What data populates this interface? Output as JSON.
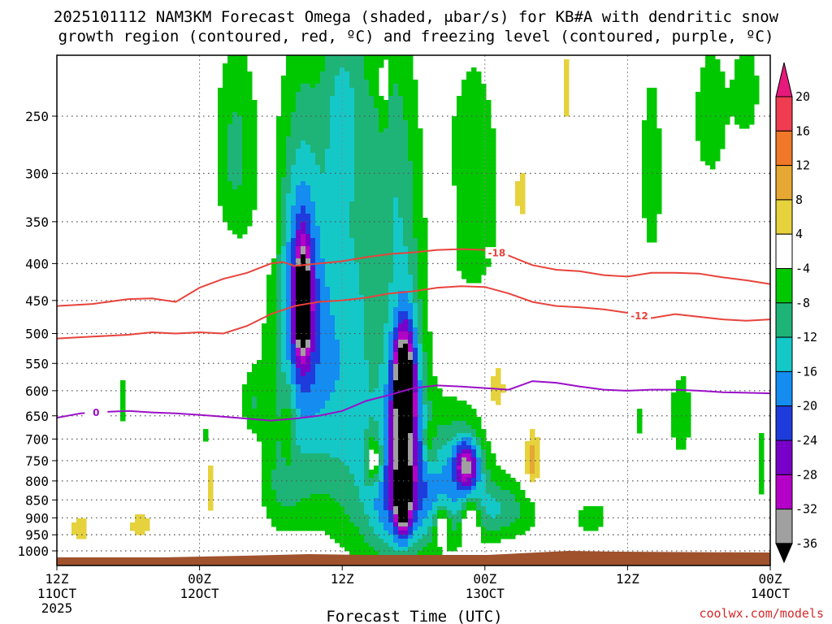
{
  "chart_data": {
    "type": "heatmap",
    "title_line1": "2025101112 NAM3KM Forecast Omega (shaded, μbar/s) for KB#A with dendritic snow",
    "title_line2": "growth region (contoured, red, ºC) and freezing level (contoured, purple, ºC)",
    "xlabel": "Forecast Time (UTC)",
    "credit": "coolwx.com/models",
    "x_range_hours": [
      0,
      60
    ],
    "y_range_hpa": [
      1025,
      200
    ],
    "y_scale": "log-pressure",
    "x_ticks": [
      {
        "hour": 0,
        "label1": "12Z",
        "label2": "11OCT",
        "label3": "2025"
      },
      {
        "hour": 12,
        "label1": "00Z",
        "label2": "12OCT",
        "label3": ""
      },
      {
        "hour": 24,
        "label1": "12Z",
        "label2": "",
        "label3": ""
      },
      {
        "hour": 36,
        "label1": "00Z",
        "label2": "13OCT",
        "label3": ""
      },
      {
        "hour": 48,
        "label1": "12Z",
        "label2": "",
        "label3": ""
      },
      {
        "hour": 60,
        "label1": "00Z",
        "label2": "14OCT",
        "label3": ""
      }
    ],
    "y_ticks": [
      {
        "p": 250,
        "label": "250"
      },
      {
        "p": 300,
        "label": "300"
      },
      {
        "p": 350,
        "label": "350"
      },
      {
        "p": 400,
        "label": "400"
      },
      {
        "p": 450,
        "label": "450"
      },
      {
        "p": 500,
        "label": "500"
      },
      {
        "p": 550,
        "label": "550"
      },
      {
        "p": 600,
        "label": "600"
      },
      {
        "p": 650,
        "label": "650"
      },
      {
        "p": 700,
        "label": "700"
      },
      {
        "p": 750,
        "label": "750"
      },
      {
        "p": 800,
        "label": "800"
      },
      {
        "p": 850,
        "label": "850"
      },
      {
        "p": 900,
        "label": "900"
      },
      {
        "p": 950,
        "label": "950"
      },
      {
        "p": 1000,
        "label": "1000"
      }
    ],
    "colorbar": {
      "labels": [
        "20",
        "16",
        "12",
        "8",
        "4",
        "-4",
        "-8",
        "-12",
        "-16",
        "-20",
        "-24",
        "-28",
        "-32",
        "-36"
      ],
      "bins": [
        {
          "lo": 16,
          "hi": 20,
          "color": "#f03c50"
        },
        {
          "lo": 12,
          "hi": 16,
          "color": "#f07828"
        },
        {
          "lo": 8,
          "hi": 12,
          "color": "#e6a832"
        },
        {
          "lo": 4,
          "hi": 8,
          "color": "#e6d23c"
        },
        {
          "lo": -4,
          "hi": 4,
          "color": "#ffffff"
        },
        {
          "lo": -8,
          "hi": -4,
          "color": "#00c800"
        },
        {
          "lo": -12,
          "hi": -8,
          "color": "#1eb478"
        },
        {
          "lo": -16,
          "hi": -12,
          "color": "#14c8c8"
        },
        {
          "lo": -20,
          "hi": -16,
          "color": "#148cf0"
        },
        {
          "lo": -24,
          "hi": -20,
          "color": "#1e3cdc"
        },
        {
          "lo": -28,
          "hi": -24,
          "color": "#7800c8"
        },
        {
          "lo": -32,
          "hi": -28,
          "color": "#b400c8"
        },
        {
          "lo": -36,
          "hi": -32,
          "color": "#a0a0a0"
        }
      ],
      "top_color": "#e6197d",
      "bottom_color": "#000000"
    },
    "colors": {
      "dgz": "#e8433c",
      "freezing": "#9b0fc8",
      "ground": "#a0522d",
      "grid": "#888888"
    },
    "omega_blobs": [
      {
        "h": 21.5,
        "p": 560,
        "dh": 3.8,
        "dp": 300,
        "w": -12
      },
      {
        "h": 20.5,
        "p": 440,
        "dh": 1.6,
        "dp": 180,
        "w": -16
      },
      {
        "h": 20.7,
        "p": 455,
        "dh": 0.6,
        "dp": 70,
        "w": -30
      },
      {
        "h": 25.2,
        "p": 520,
        "dh": 3.2,
        "dp": 420,
        "w": -9
      },
      {
        "h": 29.3,
        "p": 620,
        "dh": 1.6,
        "dp": 220,
        "w": -22
      },
      {
        "h": 29.2,
        "p": 590,
        "dh": 0.8,
        "dp": 90,
        "w": -30
      },
      {
        "h": 28.8,
        "p": 850,
        "dh": 3.0,
        "dp": 180,
        "w": -18
      },
      {
        "h": 29.1,
        "p": 840,
        "dh": 0.6,
        "dp": 100,
        "w": -30
      },
      {
        "h": 29.0,
        "p": 840,
        "dh": 0.25,
        "dp": 40,
        "w": -40
      },
      {
        "h": 33.5,
        "p": 800,
        "dh": 3.0,
        "dp": 160,
        "w": -14
      },
      {
        "h": 34.5,
        "p": 760,
        "dh": 1.0,
        "dp": 60,
        "w": -22
      },
      {
        "h": 37.5,
        "p": 880,
        "dh": 3.0,
        "dp": 80,
        "w": -10
      },
      {
        "h": 35.0,
        "p": 320,
        "dh": 2.8,
        "dp": 140,
        "w": -7
      },
      {
        "h": 28.5,
        "p": 290,
        "dh": 2.0,
        "dp": 120,
        "w": -7
      },
      {
        "h": 15.0,
        "p": 280,
        "dh": 1.8,
        "dp": 90,
        "w": -9
      },
      {
        "h": 24.0,
        "p": 250,
        "dh": 1.5,
        "dp": 70,
        "w": -7
      },
      {
        "h": 55.0,
        "p": 250,
        "dh": 1.6,
        "dp": 60,
        "w": -7
      },
      {
        "h": 58.0,
        "p": 230,
        "dh": 1.2,
        "dp": 40,
        "w": -7
      },
      {
        "h": 50.0,
        "p": 300,
        "dh": 1.0,
        "dp": 100,
        "w": -7
      },
      {
        "h": 52.5,
        "p": 650,
        "dh": 1.2,
        "dp": 120,
        "w": -6
      },
      {
        "h": 45.0,
        "p": 900,
        "dh": 1.5,
        "dp": 50,
        "w": -7
      },
      {
        "h": 19.0,
        "p": 820,
        "dh": 2.0,
        "dp": 120,
        "w": -6
      },
      {
        "h": 16.5,
        "p": 620,
        "dh": 1.0,
        "dp": 60,
        "w": -6
      },
      {
        "h": 5.5,
        "p": 620,
        "dh": 0.4,
        "dp": 60,
        "w": -6
      },
      {
        "h": 12.5,
        "p": 690,
        "dh": 0.5,
        "dp": 25,
        "w": -6
      },
      {
        "h": 49.0,
        "p": 660,
        "dh": 0.6,
        "dp": 40,
        "w": -6
      },
      {
        "h": 59.2,
        "p": 760,
        "dh": 0.5,
        "dp": 120,
        "w": -6
      },
      {
        "h": 26.7,
        "p": 750,
        "dh": 0.7,
        "dp": 60,
        "w": 14
      },
      {
        "h": 32.4,
        "p": 920,
        "dh": 0.6,
        "dp": 50,
        "w": 12
      },
      {
        "h": 34.8,
        "p": 900,
        "dh": 0.8,
        "dp": 60,
        "w": 13
      },
      {
        "h": 40.0,
        "p": 750,
        "dh": 0.6,
        "dp": 70,
        "w": 11
      },
      {
        "h": 31.3,
        "p": 720,
        "dh": 0.6,
        "dp": 60,
        "w": 8
      },
      {
        "h": 2.0,
        "p": 930,
        "dh": 1.0,
        "dp": 50,
        "w": 6
      },
      {
        "h": 7.0,
        "p": 920,
        "dh": 1.1,
        "dp": 50,
        "w": 6
      },
      {
        "h": 13.0,
        "p": 820,
        "dh": 0.5,
        "dp": 90,
        "w": 6
      },
      {
        "h": 19.5,
        "p": 680,
        "dh": 0.5,
        "dp": 100,
        "w": 6
      },
      {
        "h": 18.0,
        "p": 360,
        "dh": 0.6,
        "dp": 40,
        "w": 6
      },
      {
        "h": 39.0,
        "p": 320,
        "dh": 0.8,
        "dp": 50,
        "w": 6
      },
      {
        "h": 37.0,
        "p": 600,
        "dh": 1.0,
        "dp": 80,
        "w": 6
      },
      {
        "h": 43.0,
        "p": 230,
        "dh": 0.4,
        "dp": 40,
        "w": 6
      },
      {
        "h": 27.5,
        "p": 230,
        "dh": 0.4,
        "dp": 30,
        "w": 6
      },
      {
        "h": 33.0,
        "p": 350,
        "dh": 0.5,
        "dp": 40,
        "w": 6
      }
    ],
    "series": [
      {
        "name": "DGZ -18C",
        "label": "-18",
        "color": "#e8433c",
        "label_hour": 37.0,
        "x": [
          0,
          3,
          6,
          8,
          10,
          12,
          14,
          16,
          18,
          19,
          20,
          22,
          24,
          26,
          28,
          30,
          32,
          34,
          36,
          38,
          40,
          42,
          44,
          46,
          48,
          50,
          52,
          54,
          56,
          58,
          60
        ],
        "y": [
          458,
          455,
          448,
          447,
          452,
          432,
          420,
          412,
          400,
          398,
          403,
          400,
          397,
          392,
          388,
          386,
          383,
          382,
          383,
          390,
          402,
          408,
          410,
          415,
          417,
          412,
          412,
          413,
          418,
          422,
          427
        ]
      },
      {
        "name": "DGZ -12C",
        "label": "-12",
        "color": "#e8433c",
        "label_hour": 49.0,
        "x": [
          0,
          3,
          6,
          8,
          10,
          12,
          14,
          16,
          18,
          20,
          22,
          24,
          26,
          28,
          30,
          32,
          34,
          36,
          38,
          40,
          42,
          44,
          46,
          48,
          50,
          52,
          54,
          56,
          58,
          60
        ],
        "y": [
          508,
          505,
          502,
          498,
          500,
          498,
          500,
          488,
          470,
          458,
          452,
          450,
          446,
          440,
          437,
          432,
          430,
          431,
          440,
          452,
          458,
          460,
          463,
          468,
          476,
          470,
          474,
          478,
          480,
          478
        ]
      },
      {
        "name": "Freezing level 0C",
        "label": "0",
        "color": "#9b0fc8",
        "label_hour": 3.3,
        "x": [
          0,
          2,
          4,
          6,
          8,
          10,
          12,
          14,
          16,
          18,
          20,
          22,
          24,
          26,
          28,
          30,
          32,
          34,
          36,
          38,
          40,
          42,
          44,
          46,
          48,
          50,
          52,
          54,
          56,
          58,
          60
        ],
        "y": [
          654,
          645,
          642,
          640,
          643,
          645,
          648,
          652,
          656,
          660,
          656,
          650,
          640,
          620,
          608,
          595,
          590,
          592,
          595,
          598,
          582,
          585,
          592,
          598,
          600,
          598,
          598,
          600,
          603,
          604,
          605
        ]
      }
    ]
  }
}
